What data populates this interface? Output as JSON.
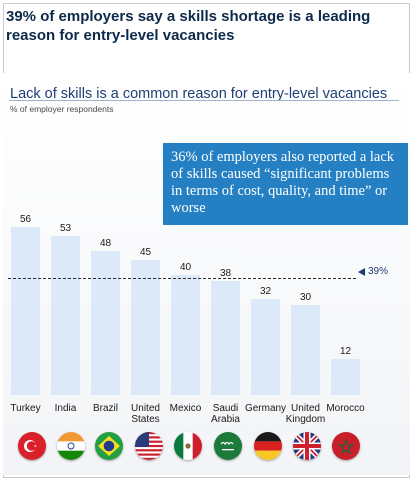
{
  "headline": "39% of employers say a skills shortage is a leading reason for entry-level vacancies",
  "callout": "36% of employers  also reported a lack of skills caused “significant problems in terms of cost, quality, and time” or worse",
  "colors": {
    "headline": "#0d2a4a",
    "bar": "#dce9f8",
    "callout": "#2580c3",
    "reference": "#1e3f73"
  },
  "chart_data": {
    "type": "bar",
    "title": "Lack of skills is a common reason for entry-level vacancies",
    "subtitle": "% of employer respondents",
    "categories": [
      "Turkey",
      "India",
      "Brazil",
      "United States",
      "Mexico",
      "Saudi Arabia",
      "Germany",
      "United Kingdom",
      "Morocco"
    ],
    "values": [
      56,
      53,
      48,
      45,
      40,
      38,
      32,
      30,
      12
    ],
    "reference_line": {
      "value": 39,
      "label": "39%"
    },
    "ylim": [
      0,
      60
    ],
    "grid": false,
    "legend": "none",
    "flags": [
      "turkey-flag-icon",
      "india-flag-icon",
      "brazil-flag-icon",
      "usa-flag-icon",
      "mexico-flag-icon",
      "saudi-arabia-flag-icon",
      "germany-flag-icon",
      "uk-flag-icon",
      "morocco-flag-icon"
    ]
  }
}
